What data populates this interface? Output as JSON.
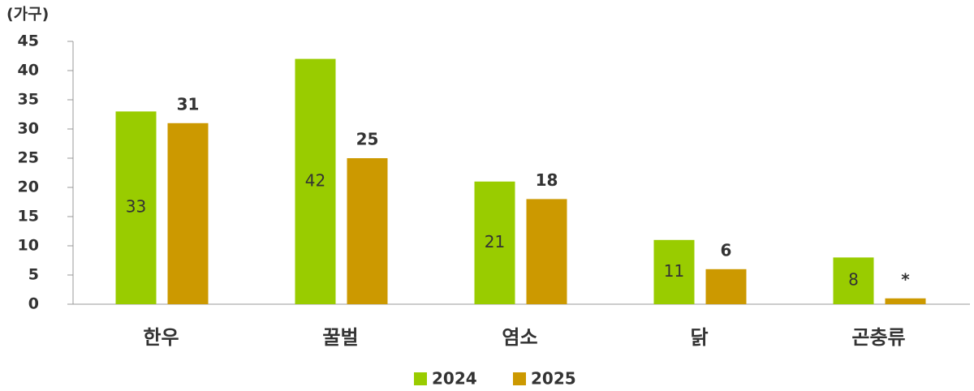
{
  "chart_data": {
    "type": "bar",
    "y_label": "(가구)",
    "categories": [
      "한우",
      "꿀벌",
      "염소",
      "닭",
      "곤충류"
    ],
    "series": [
      {
        "name": "2024",
        "color": "#99cc00",
        "values": [
          33,
          42,
          21,
          11,
          8
        ]
      },
      {
        "name": "2025",
        "color": "#cc9900",
        "values": [
          31,
          25,
          18,
          6,
          1
        ],
        "value_labels": [
          "31",
          "25",
          "18",
          "6",
          "*"
        ]
      }
    ],
    "ylim": [
      0,
      45
    ],
    "yticks": [
      0,
      5,
      10,
      15,
      20,
      25,
      30,
      35,
      40,
      45
    ],
    "grid": false,
    "legend": "bottom"
  }
}
